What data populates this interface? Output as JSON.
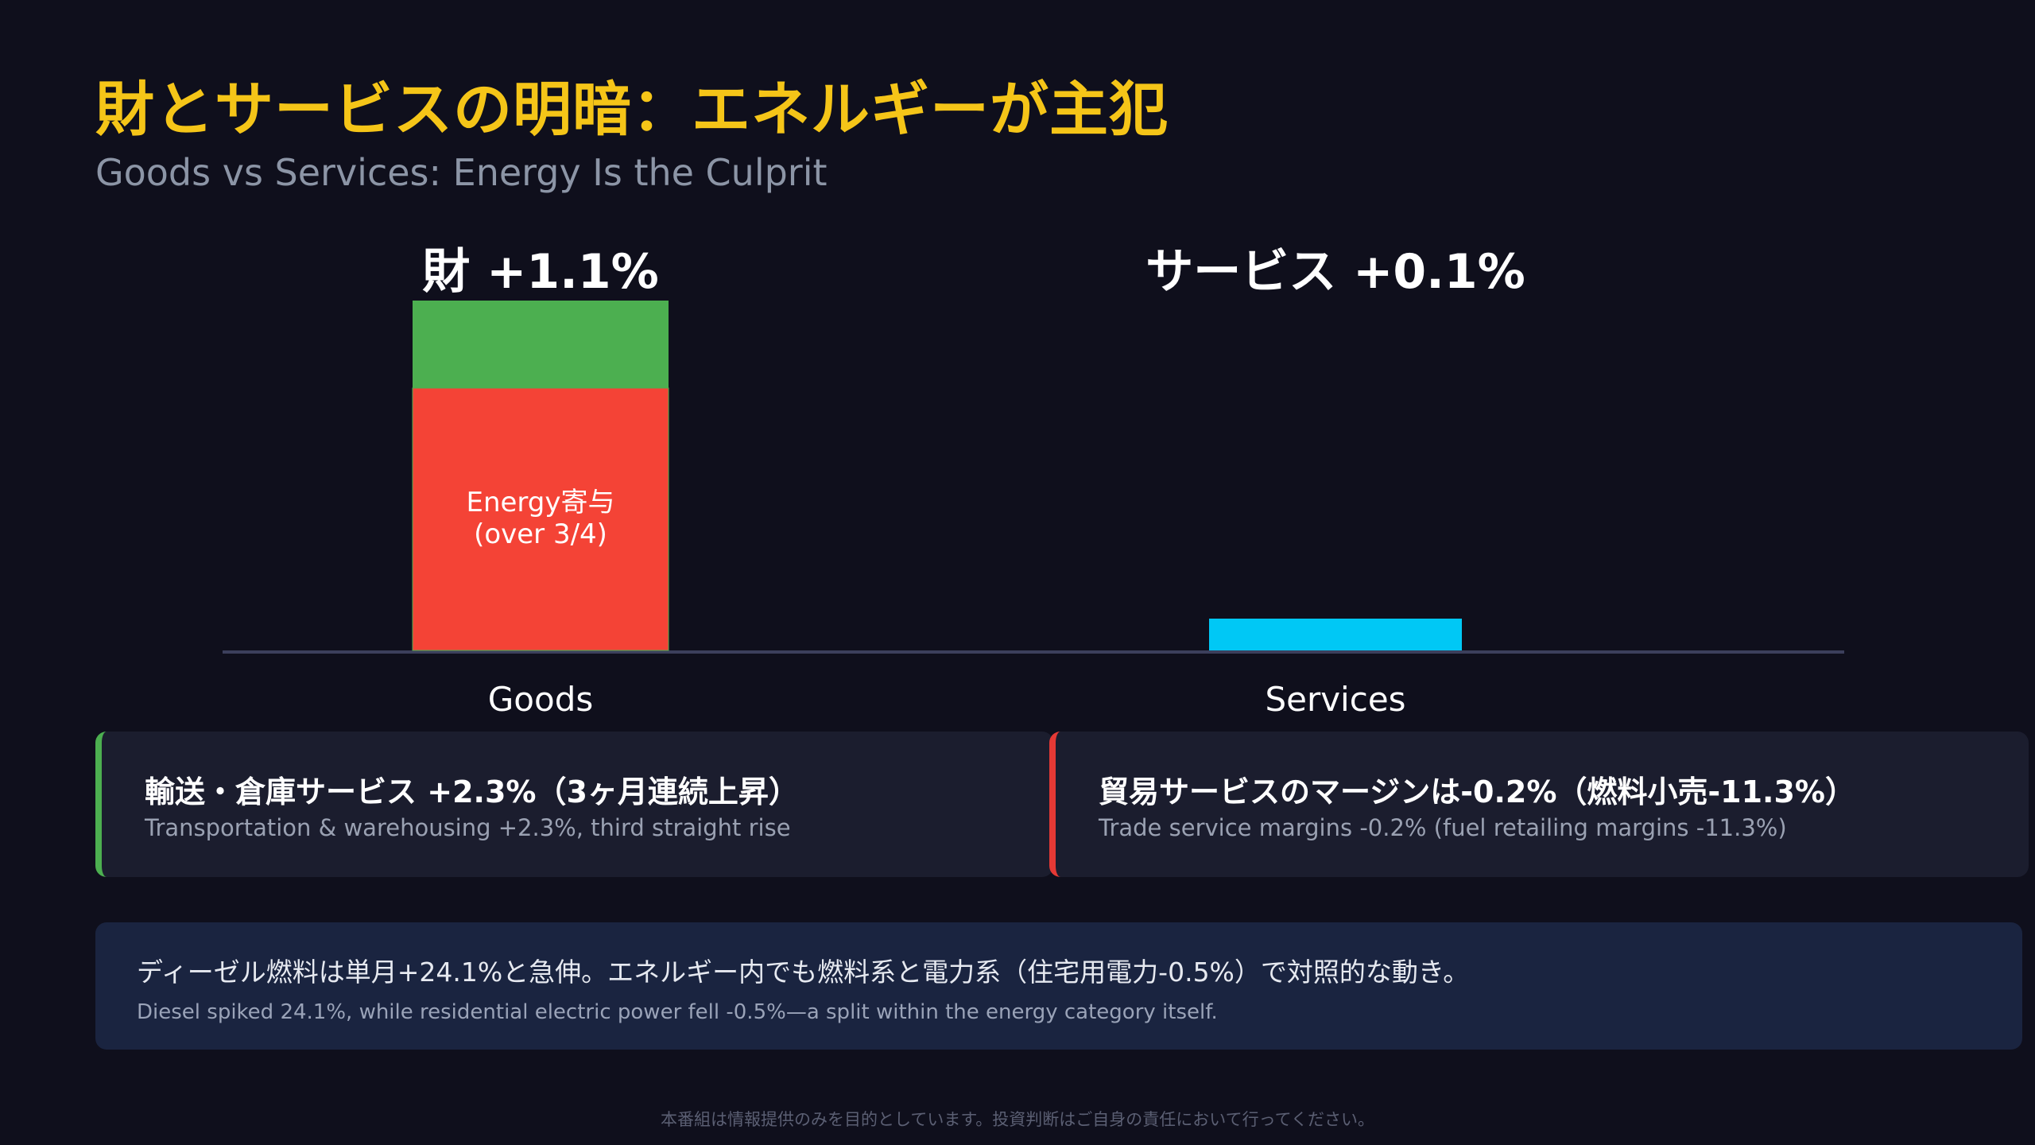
{
  "page": {
    "title": "財とサービスの明暗：エネルギーが主犯",
    "subtitle": "Goods vs Services: Energy Is the Culprit"
  },
  "chart_data": {
    "type": "bar",
    "title": "",
    "categories": [
      "Goods",
      "Services"
    ],
    "value_labels": [
      "財 +1.1%",
      "サービス +0.1%"
    ],
    "values": [
      1.1,
      0.1
    ],
    "goods_breakdown": {
      "energy_fraction": 0.75,
      "energy_label_line1": "Energy寄与",
      "energy_label_line2": "(over 3/4)"
    },
    "ylim": [
      0,
      1.1
    ],
    "colors": {
      "goods_energy": "#f44336",
      "goods_other": "#4caf50",
      "services": "#00c8f5",
      "baseline": "#3c3f5c"
    },
    "grid": false,
    "legend": "none"
  },
  "cards": [
    {
      "main": "輸送・倉庫サービス +2.3%（3ヶ月連続上昇）",
      "sub": "Transportation & warehousing +2.3%, third straight rise",
      "accent": "#4caf50"
    },
    {
      "main": "貿易サービスのマージンは-0.2%（燃料小売-11.3%）",
      "sub": "Trade service margins -0.2% (fuel retailing margins -11.3%)",
      "accent": "#e53935"
    }
  ],
  "note": {
    "main": "ディーゼル燃料は単月+24.1%と急伸。エネルギー内でも燃料系と電力系（住宅用電力-0.5%）で対照的な動き。",
    "sub": "Diesel spiked 24.1%, while residential electric power fell -0.5%—a split within the energy category itself."
  },
  "footer": {
    "disclaimer": "本番組は情報提供のみを目的としています。投資判断はご自身の責任において行ってください。"
  }
}
